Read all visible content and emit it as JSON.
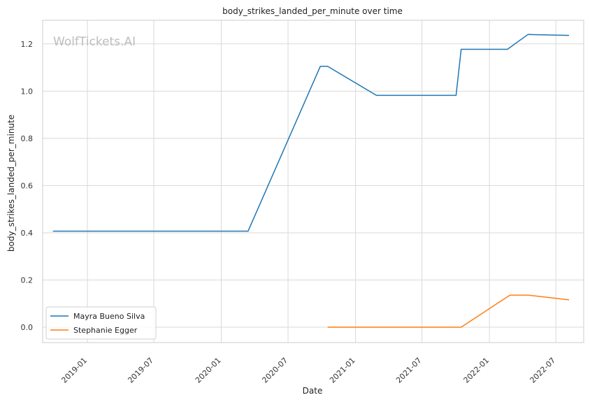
{
  "chart_data": {
    "type": "line",
    "title": "body_strikes_landed_per_minute over time",
    "xlabel": "Date",
    "ylabel": "body_strikes_landed_per_minute",
    "watermark": "WolfTickets.AI",
    "xlim": [
      "2018-09-01",
      "2022-09-15"
    ],
    "ylim": [
      -0.065,
      1.3
    ],
    "x_ticks": [
      "2019-01",
      "2019-07",
      "2020-01",
      "2020-07",
      "2021-01",
      "2021-07",
      "2022-01",
      "2022-07"
    ],
    "y_ticks": [
      "0.0",
      "0.2",
      "0.4",
      "0.6",
      "0.8",
      "1.0",
      "1.2"
    ],
    "grid": true,
    "legend": "lower-left",
    "series": [
      {
        "name": "Mayra Bueno Silva",
        "color": "#1f77b4",
        "points": [
          {
            "x": "2018-09-29",
            "y": 0.407
          },
          {
            "x": "2020-03-14",
            "y": 0.407
          },
          {
            "x": "2020-09-27",
            "y": 1.105
          },
          {
            "x": "2020-10-17",
            "y": 1.105
          },
          {
            "x": "2021-02-27",
            "y": 0.982
          },
          {
            "x": "2021-10-02",
            "y": 0.982
          },
          {
            "x": "2021-10-16",
            "y": 1.177
          },
          {
            "x": "2022-02-19",
            "y": 1.177
          },
          {
            "x": "2022-04-16",
            "y": 1.24
          },
          {
            "x": "2022-08-06",
            "y": 1.236
          }
        ]
      },
      {
        "name": "Stephanie Egger",
        "color": "#ff7f0e",
        "points": [
          {
            "x": "2020-10-17",
            "y": 0.0
          },
          {
            "x": "2021-10-16",
            "y": 0.0
          },
          {
            "x": "2022-02-26",
            "y": 0.136
          },
          {
            "x": "2022-04-16",
            "y": 0.136
          },
          {
            "x": "2022-08-06",
            "y": 0.116
          }
        ]
      }
    ]
  }
}
